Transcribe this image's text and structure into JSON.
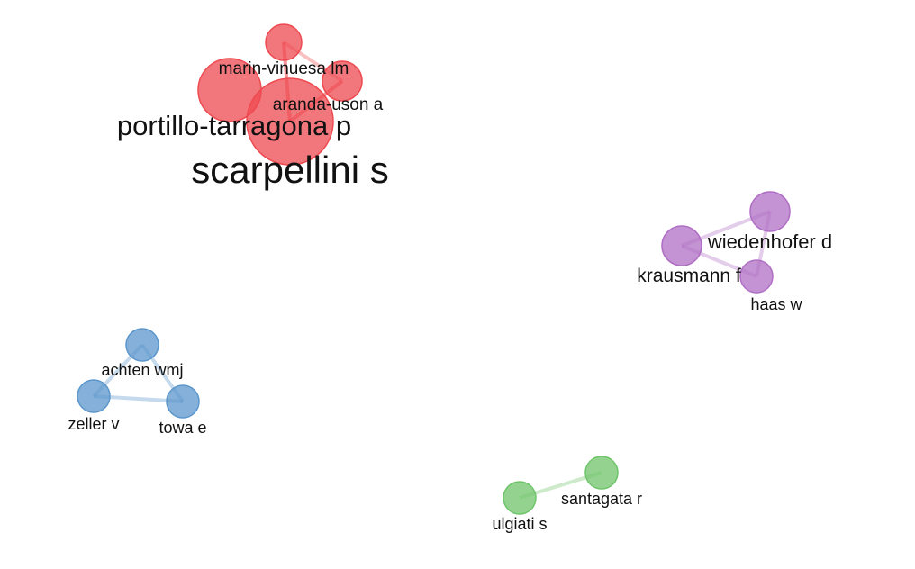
{
  "colors": {
    "red": "#ee4a50",
    "purple": "#b06fc4",
    "blue": "#5b96cc",
    "green": "#6fc46a"
  },
  "nodes": [
    {
      "id": "n1",
      "label": "",
      "group": "red"
    },
    {
      "id": "marin",
      "label": "marin-vinuesa lm",
      "group": "red"
    },
    {
      "id": "aranda",
      "label": "aranda-uson a",
      "group": "red"
    },
    {
      "id": "portillo",
      "label": "portillo-tarragona p",
      "group": "red"
    },
    {
      "id": "scarpellini",
      "label": "scarpellini s",
      "group": "red"
    },
    {
      "id": "wied_node",
      "label": "",
      "group": "purple"
    },
    {
      "id": "wiedenhofer",
      "label": "wiedenhofer d",
      "group": "purple"
    },
    {
      "id": "krausmann",
      "label": "krausmann f",
      "group": "purple"
    },
    {
      "id": "haas",
      "label": "haas w",
      "group": "purple"
    },
    {
      "id": "achten",
      "label": "achten wmj",
      "group": "blue"
    },
    {
      "id": "zeller",
      "label": "zeller v",
      "group": "blue"
    },
    {
      "id": "towa",
      "label": "towa e",
      "group": "blue"
    },
    {
      "id": "santagata",
      "label": "santagata r",
      "group": "green"
    },
    {
      "id": "ulgiati",
      "label": "ulgiati s",
      "group": "green"
    }
  ],
  "edges": [
    [
      "n1",
      "portillo"
    ],
    [
      "n1",
      "scarpellini"
    ],
    [
      "n1",
      "aranda"
    ],
    [
      "portillo",
      "aranda"
    ],
    [
      "portillo",
      "scarpellini"
    ],
    [
      "aranda",
      "scarpellini"
    ],
    [
      "wied_node",
      "krausmann"
    ],
    [
      "wied_node",
      "haas"
    ],
    [
      "krausmann",
      "haas"
    ],
    [
      "achten",
      "zeller"
    ],
    [
      "achten",
      "towa"
    ],
    [
      "zeller",
      "towa"
    ],
    [
      "santagata",
      "ulgiati"
    ]
  ]
}
